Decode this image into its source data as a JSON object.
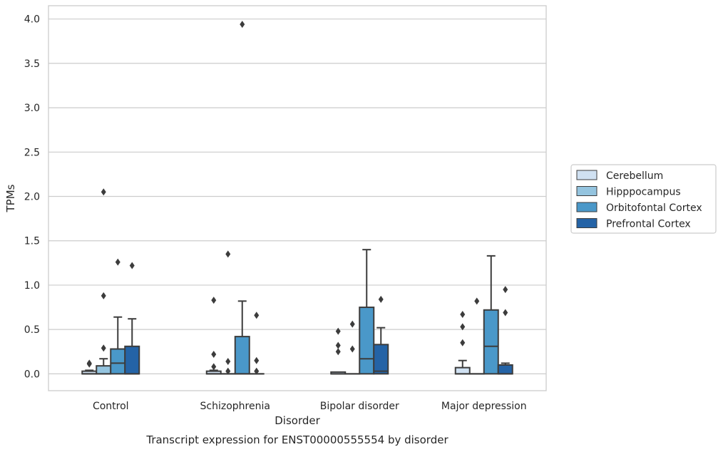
{
  "chart_data": {
    "type": "boxplot",
    "xlabel": "Disorder",
    "ylabel": "TPMs",
    "caption": "Transcript expression for ENST00000555554 by disorder",
    "ylim": [
      -0.19,
      4.15
    ],
    "yticks": [
      "0.0",
      "0.5",
      "1.0",
      "1.5",
      "2.0",
      "2.5",
      "3.0",
      "3.5",
      "4.0"
    ],
    "grid": "horizontal",
    "legend_position": "right",
    "categories": [
      "Control",
      "Schizophrenia",
      "Bipolar disorder",
      "Major depression"
    ],
    "series": [
      {
        "name": "Cerebellum",
        "color": "#d0e1f2",
        "boxes": [
          {
            "q1": 0.0,
            "median": 0.0,
            "q3": 0.03,
            "whisker_low": 0.0,
            "whisker_high": 0.04,
            "outliers": [
              0.12,
              0.11
            ]
          },
          {
            "q1": 0.0,
            "median": 0.0,
            "q3": 0.03,
            "whisker_low": 0.0,
            "whisker_high": 0.04,
            "outliers": [
              0.83,
              0.22,
              0.08
            ]
          },
          {
            "q1": 0.0,
            "median": 0.0,
            "q3": 0.02,
            "whisker_low": 0.0,
            "whisker_high": 0.02,
            "outliers": [
              0.48,
              0.32,
              0.25
            ]
          },
          {
            "q1": 0.0,
            "median": 0.0,
            "q3": 0.07,
            "whisker_low": 0.0,
            "whisker_high": 0.15,
            "outliers": [
              0.67,
              0.53,
              0.35
            ]
          }
        ]
      },
      {
        "name": "Hipppocampus",
        "color": "#94c4df",
        "boxes": [
          {
            "q1": 0.0,
            "median": 0.0,
            "q3": 0.09,
            "whisker_low": 0.0,
            "whisker_high": 0.17,
            "outliers": [
              2.05,
              0.88,
              0.29
            ]
          },
          {
            "q1": 0.0,
            "median": 0.0,
            "q3": 0.0,
            "whisker_low": 0.0,
            "whisker_high": 0.0,
            "outliers": [
              1.35,
              0.14,
              0.03
            ]
          },
          {
            "q1": 0.0,
            "median": 0.0,
            "q3": 0.0,
            "whisker_low": 0.0,
            "whisker_high": 0.0,
            "outliers": [
              0.56,
              0.28
            ]
          },
          {
            "q1": 0.0,
            "median": 0.0,
            "q3": 0.0,
            "whisker_low": 0.0,
            "whisker_high": 0.0,
            "outliers": [
              0.82
            ]
          }
        ]
      },
      {
        "name": "Orbitofontal Cortex",
        "color": "#4a98c9",
        "boxes": [
          {
            "q1": 0.0,
            "median": 0.12,
            "q3": 0.28,
            "whisker_low": 0.0,
            "whisker_high": 0.64,
            "outliers": [
              1.26
            ]
          },
          {
            "q1": 0.0,
            "median": 0.0,
            "q3": 0.42,
            "whisker_low": 0.0,
            "whisker_high": 0.82,
            "outliers": [
              3.94
            ]
          },
          {
            "q1": 0.0,
            "median": 0.17,
            "q3": 0.75,
            "whisker_low": 0.0,
            "whisker_high": 1.4,
            "outliers": []
          },
          {
            "q1": 0.0,
            "median": 0.31,
            "q3": 0.72,
            "whisker_low": 0.0,
            "whisker_high": 1.33,
            "outliers": []
          }
        ]
      },
      {
        "name": "Prefrontal Cortex",
        "color": "#2463a6",
        "boxes": [
          {
            "q1": 0.0,
            "median": 0.0,
            "q3": 0.31,
            "whisker_low": 0.0,
            "whisker_high": 0.62,
            "outliers": [
              1.22
            ]
          },
          {
            "q1": 0.0,
            "median": 0.0,
            "q3": 0.0,
            "whisker_low": 0.0,
            "whisker_high": 0.0,
            "outliers": [
              0.66,
              0.15,
              0.03
            ]
          },
          {
            "q1": 0.0,
            "median": 0.03,
            "q3": 0.33,
            "whisker_low": 0.0,
            "whisker_high": 0.52,
            "outliers": [
              0.84
            ]
          },
          {
            "q1": 0.0,
            "median": 0.0,
            "q3": 0.1,
            "whisker_low": 0.0,
            "whisker_high": 0.12,
            "outliers": [
              0.95,
              0.69
            ]
          }
        ]
      }
    ]
  }
}
